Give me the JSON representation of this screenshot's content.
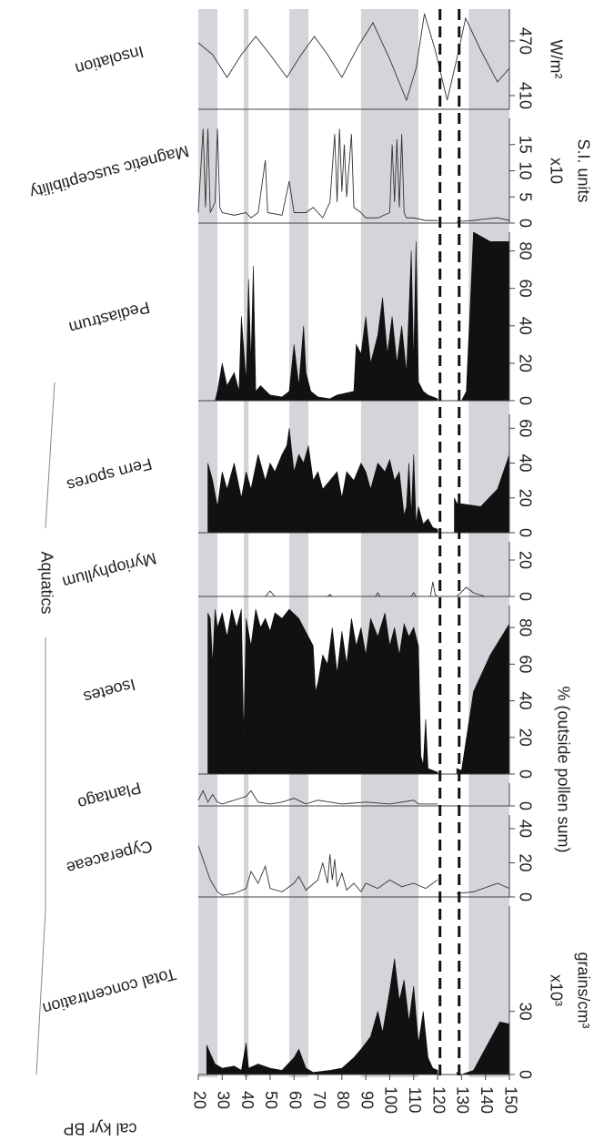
{
  "figure": {
    "shaded_intervals": [
      [
        20,
        28
      ],
      [
        39,
        41
      ],
      [
        58,
        66
      ],
      [
        88,
        112
      ],
      [
        133,
        150
      ]
    ],
    "dashed_lines": [
      121,
      129
    ],
    "group_label": "Aquatics",
    "percent_label": "% (outside pollen sum)"
  },
  "chart_data": [
    {
      "type": "line",
      "title": "Insolation",
      "units": [
        "W/m²"
      ],
      "xlim": [
        20,
        150
      ],
      "ylim": [
        395,
        505
      ],
      "yticks": [
        410,
        470
      ],
      "x": [
        20,
        26,
        32,
        38,
        44,
        50,
        57,
        63,
        68.5,
        74,
        80,
        87,
        93,
        100,
        107,
        111,
        114.5,
        119,
        124,
        128,
        131.7,
        138,
        145,
        150
      ],
      "values": [
        468,
        455,
        430,
        455,
        475,
        455,
        430,
        455,
        475,
        455,
        430,
        465,
        490,
        450,
        405,
        440,
        500,
        460,
        405,
        450,
        495,
        460,
        425,
        440
      ]
    },
    {
      "type": "line",
      "title": "Magnetic susceptibility",
      "units": [
        "x10",
        "S.I. units"
      ],
      "xlim": [
        20,
        150
      ],
      "ylim": [
        0,
        20
      ],
      "yticks": [
        0,
        5,
        10,
        15
      ],
      "x": [
        20,
        22,
        23,
        24,
        25,
        27,
        28,
        29,
        30,
        35,
        40,
        42,
        45,
        48,
        49,
        55,
        58,
        60,
        65,
        68,
        70,
        72,
        75,
        77,
        78,
        79,
        80,
        81,
        82,
        84,
        85,
        88,
        90,
        95,
        100,
        101,
        102,
        103,
        104,
        105,
        106,
        107,
        110,
        115,
        120,
        121,
        128,
        135,
        140,
        145,
        150
      ],
      "values": [
        2,
        18,
        3,
        18,
        2,
        4,
        18,
        3,
        2,
        1.5,
        2,
        1,
        2,
        12,
        2,
        1.5,
        8,
        2,
        2,
        3,
        2,
        1,
        4,
        17,
        4,
        18,
        6,
        15,
        5,
        17,
        3,
        2,
        1,
        1,
        2,
        15,
        4,
        16,
        3,
        17,
        2,
        1,
        1,
        0.5,
        0.5,
        null,
        0.3,
        0.5,
        0.8,
        1,
        0.5
      ]
    },
    {
      "type": "area",
      "title": "Pediastrum",
      "xlim": [
        20,
        150
      ],
      "ylim": [
        0,
        90
      ],
      "yticks": [
        0,
        20,
        40,
        60,
        80
      ],
      "x": [
        23,
        27,
        28,
        30,
        32,
        35,
        37,
        38,
        40,
        41,
        42,
        43,
        44,
        46,
        50,
        55,
        58,
        60,
        62,
        64,
        65,
        67,
        70,
        75,
        78,
        85,
        86,
        88,
        90,
        92,
        95,
        97,
        99,
        101,
        103,
        105,
        107,
        109,
        110,
        111,
        112,
        114,
        116,
        120,
        121,
        130,
        132,
        135,
        142,
        150
      ],
      "values": [
        0,
        0,
        5,
        20,
        8,
        15,
        5,
        45,
        10,
        65,
        20,
        72,
        5,
        8,
        3,
        2,
        5,
        30,
        8,
        40,
        15,
        5,
        2,
        1,
        3,
        5,
        30,
        25,
        45,
        20,
        35,
        55,
        25,
        45,
        20,
        40,
        15,
        80,
        20,
        85,
        10,
        5,
        3,
        1,
        null,
        0,
        5,
        90,
        85,
        85
      ]
    },
    {
      "type": "area",
      "title": "Fern spores",
      "xlim": [
        20,
        150
      ],
      "ylim": [
        0,
        68
      ],
      "yticks": [
        0,
        20,
        40,
        60
      ],
      "x": [
        24,
        26,
        28,
        30,
        32,
        35,
        38,
        40,
        42,
        45,
        48,
        50,
        52,
        55,
        57,
        58,
        60,
        62,
        64,
        66,
        68,
        70,
        72,
        75,
        78,
        80,
        82,
        85,
        88,
        90,
        92,
        95,
        98,
        100,
        102,
        104,
        106,
        107,
        108,
        109,
        110,
        111,
        112,
        114,
        116,
        118,
        120,
        121,
        127,
        128,
        138,
        145,
        150
      ],
      "values": [
        40,
        30,
        15,
        35,
        25,
        40,
        20,
        35,
        25,
        45,
        30,
        40,
        35,
        45,
        50,
        60,
        35,
        45,
        40,
        50,
        30,
        35,
        25,
        30,
        35,
        20,
        35,
        30,
        40,
        35,
        25,
        40,
        35,
        42,
        30,
        35,
        10,
        15,
        40,
        10,
        45,
        5,
        15,
        5,
        8,
        3,
        2,
        null,
        20,
        17,
        15,
        25,
        45
      ]
    },
    {
      "type": "line",
      "title": "Myriophyllum",
      "xlim": [
        20,
        150
      ],
      "ylim": [
        0,
        30
      ],
      "yticks": [
        0,
        20
      ],
      "x": [
        20,
        48,
        50,
        52,
        74,
        75,
        76,
        94,
        95,
        96,
        109,
        110,
        111,
        117,
        118,
        119,
        120,
        121,
        128,
        132,
        135,
        140,
        150
      ],
      "values": [
        0,
        0,
        3,
        0,
        0,
        1,
        0,
        0,
        2,
        0,
        0,
        2,
        0,
        0,
        8,
        1,
        0,
        null,
        0,
        5,
        2,
        0,
        0
      ]
    },
    {
      "type": "area",
      "title": "Isoetes",
      "xlim": [
        20,
        150
      ],
      "ylim": [
        0,
        92
      ],
      "yticks": [
        0,
        20,
        40,
        60,
        80
      ],
      "x": [
        24,
        25,
        26,
        27,
        28,
        30,
        32,
        34,
        36,
        38,
        39,
        40,
        42,
        44,
        46,
        48,
        50,
        52,
        55,
        58,
        62,
        64,
        66,
        68,
        69,
        70,
        72,
        74,
        76,
        78,
        80,
        82,
        84,
        86,
        88,
        90,
        92,
        95,
        98,
        100,
        102,
        104,
        106,
        108,
        110,
        112,
        113,
        114,
        115,
        116,
        118,
        120,
        121,
        128,
        130,
        135,
        142,
        150
      ],
      "values": [
        88,
        85,
        60,
        90,
        80,
        88,
        75,
        90,
        80,
        90,
        20,
        85,
        70,
        90,
        80,
        85,
        78,
        88,
        85,
        90,
        85,
        80,
        75,
        70,
        45,
        50,
        65,
        60,
        80,
        55,
        78,
        60,
        85,
        70,
        80,
        65,
        85,
        75,
        88,
        70,
        80,
        65,
        82,
        75,
        80,
        70,
        10,
        5,
        30,
        3,
        2,
        1,
        null,
        3,
        2,
        45,
        65,
        82
      ]
    },
    {
      "type": "line",
      "title": "Plantago",
      "xlim": [
        20,
        150
      ],
      "ylim": [
        0,
        12
      ],
      "yticks": [
        0
      ],
      "x": [
        20,
        22,
        24,
        26,
        28,
        30,
        35,
        40,
        42,
        45,
        50,
        55,
        60,
        65,
        70,
        75,
        80,
        90,
        100,
        110,
        112,
        120,
        121,
        128,
        150
      ],
      "values": [
        3,
        8,
        2,
        6,
        2,
        1,
        3,
        5,
        8,
        2,
        1,
        2,
        4,
        1,
        3,
        2,
        1,
        2,
        1,
        3,
        1,
        1,
        null,
        0,
        0
      ]
    },
    {
      "type": "line",
      "title": "Cyperaceae",
      "xlim": [
        20,
        150
      ],
      "ylim": [
        0,
        48
      ],
      "yticks": [
        0,
        20,
        40
      ],
      "x": [
        20,
        25,
        28,
        30,
        35,
        40,
        42,
        45,
        48,
        50,
        55,
        60,
        62,
        65,
        70,
        72,
        74,
        75,
        76,
        77,
        78,
        80,
        82,
        85,
        88,
        90,
        95,
        100,
        105,
        110,
        115,
        120,
        121,
        128,
        135,
        145,
        150
      ],
      "values": [
        30,
        10,
        3,
        1,
        2,
        5,
        15,
        8,
        18,
        5,
        3,
        8,
        12,
        4,
        10,
        20,
        8,
        25,
        10,
        22,
        6,
        14,
        4,
        8,
        3,
        8,
        5,
        10,
        6,
        8,
        5,
        10,
        null,
        2,
        3,
        8,
        5
      ]
    },
    {
      "type": "area",
      "title": "Total concentration",
      "units": [
        "x10³",
        "grains/cm³"
      ],
      "xlabel": "cal kyr BP",
      "xlim": [
        20,
        150
      ],
      "xticks": [
        20,
        30,
        40,
        50,
        60,
        70,
        80,
        90,
        100,
        110,
        120,
        130,
        140,
        150
      ],
      "ylim": [
        0,
        80
      ],
      "yticks": [
        0,
        30
      ],
      "x": [
        23.5,
        25,
        27,
        30,
        35,
        38,
        40,
        41,
        45,
        50,
        55,
        60,
        62,
        65,
        68,
        75,
        80,
        85,
        88,
        92,
        95,
        97,
        100,
        102,
        104,
        106,
        108,
        110,
        112,
        114,
        116,
        118,
        120,
        121,
        128,
        130,
        135,
        146,
        150
      ],
      "values": [
        14,
        10,
        5,
        3,
        4,
        2,
        15,
        3,
        5,
        3,
        2,
        8,
        12,
        3,
        1,
        2,
        3,
        8,
        12,
        18,
        30,
        20,
        40,
        55,
        35,
        45,
        25,
        42,
        15,
        30,
        8,
        3,
        2,
        null,
        1,
        0,
        2,
        25,
        24
      ]
    }
  ]
}
